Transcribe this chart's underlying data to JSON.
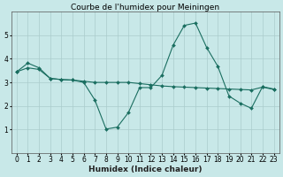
{
  "title": "Courbe de l'humidex pour Meiningen",
  "xlabel": "Humidex (Indice chaleur)",
  "ylabel": "",
  "bg_color": "#c8e8e8",
  "line_color": "#1a6e60",
  "grid_color": "#aacccc",
  "x_data": [
    0,
    1,
    2,
    3,
    4,
    5,
    6,
    7,
    8,
    9,
    10,
    11,
    12,
    13,
    14,
    15,
    16,
    17,
    18,
    19,
    20,
    21,
    22,
    23
  ],
  "series1": [
    3.45,
    3.82,
    3.62,
    3.17,
    3.12,
    3.1,
    3.0,
    2.25,
    1.02,
    1.1,
    1.72,
    2.78,
    2.78,
    3.3,
    4.58,
    5.42,
    5.52,
    4.48,
    3.68,
    2.42,
    2.12,
    1.9,
    2.82,
    2.72
  ],
  "series2": [
    3.45,
    3.62,
    3.55,
    3.17,
    3.12,
    3.1,
    3.05,
    3.0,
    3.0,
    3.0,
    3.0,
    2.95,
    2.9,
    2.85,
    2.82,
    2.8,
    2.78,
    2.76,
    2.74,
    2.72,
    2.7,
    2.68,
    2.8,
    2.7
  ],
  "ylim": [
    0,
    6
  ],
  "xlim": [
    -0.5,
    23.5
  ],
  "yticks": [
    1,
    2,
    3,
    4,
    5
  ],
  "xtick_labels": [
    "0",
    "1",
    "2",
    "3",
    "4",
    "5",
    "6",
    "7",
    "8",
    "9",
    "10",
    "11",
    "12",
    "13",
    "14",
    "15",
    "16",
    "17",
    "18",
    "19",
    "20",
    "21",
    "22",
    "23"
  ],
  "title_fontsize": 6.5,
  "axis_fontsize": 6.5,
  "tick_fontsize": 5.5
}
